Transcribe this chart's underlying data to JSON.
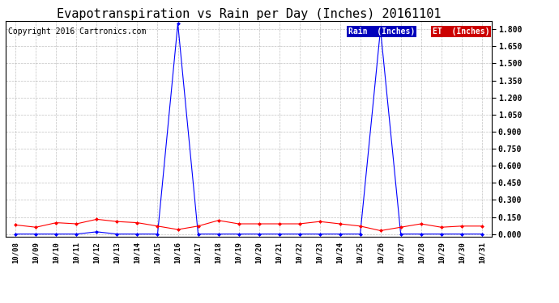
{
  "title": "Evapotranspiration vs Rain per Day (Inches) 20161101",
  "copyright": "Copyright 2016 Cartronics.com",
  "dates": [
    "10/08",
    "10/09",
    "10/10",
    "10/11",
    "10/12",
    "10/13",
    "10/14",
    "10/15",
    "10/16",
    "10/17",
    "10/18",
    "10/19",
    "10/20",
    "10/21",
    "10/22",
    "10/23",
    "10/24",
    "10/25",
    "10/26",
    "10/27",
    "10/28",
    "10/29",
    "10/30",
    "10/31"
  ],
  "rain": [
    0.0,
    0.0,
    0.0,
    0.0,
    0.02,
    0.0,
    0.0,
    0.0,
    1.85,
    0.0,
    0.0,
    0.0,
    0.0,
    0.0,
    0.0,
    0.0,
    0.0,
    0.0,
    1.8,
    0.0,
    0.0,
    0.0,
    0.0,
    0.0
  ],
  "et": [
    0.08,
    0.06,
    0.1,
    0.09,
    0.13,
    0.11,
    0.1,
    0.07,
    0.04,
    0.07,
    0.12,
    0.09,
    0.09,
    0.09,
    0.09,
    0.11,
    0.09,
    0.07,
    0.03,
    0.06,
    0.09,
    0.06,
    0.07,
    0.07
  ],
  "rain_color": "#0000ff",
  "et_color": "#ff0000",
  "ylim_min": -0.02,
  "ylim_max": 1.87,
  "yticks": [
    0.0,
    0.15,
    0.3,
    0.45,
    0.6,
    0.75,
    0.9,
    1.05,
    1.2,
    1.35,
    1.5,
    1.65,
    1.8
  ],
  "bg_color": "#ffffff",
  "grid_color": "#999999",
  "title_fontsize": 11,
  "copyright_fontsize": 7,
  "legend_rain_label": "Rain  (Inches)",
  "legend_et_label": "ET  (Inches)",
  "legend_rain_bg": "#0000bb",
  "legend_et_bg": "#cc0000"
}
